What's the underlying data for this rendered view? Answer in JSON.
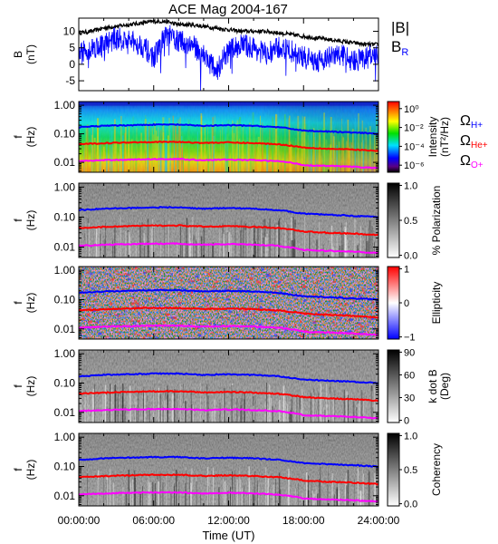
{
  "title": "ACE Mag 2004-167",
  "chart_data": [
    {
      "type": "line",
      "panel": "magnetic-field",
      "ylabel_line1": "B",
      "ylabel_line2": "(nT)",
      "ylim": [
        -8,
        14
      ],
      "yticks": [
        "10",
        "5",
        "0",
        "-5"
      ],
      "ytick_values": [
        10,
        5,
        0,
        -5
      ],
      "legend": [
        {
          "label": "|B|",
          "sub": "",
          "color": "#000000"
        },
        {
          "label": "B",
          "sub": "R",
          "color": "#0000ff"
        }
      ],
      "series": [
        {
          "name": "|B|",
          "color": "#000000",
          "x_hours": [
            0,
            1,
            2,
            3,
            4,
            5,
            6,
            7,
            8,
            9,
            10,
            11,
            12,
            13,
            14,
            15,
            16,
            17,
            18,
            19,
            20,
            21,
            22,
            23,
            24
          ],
          "values": [
            9.5,
            10,
            11,
            11.5,
            12,
            12.5,
            13,
            13,
            12,
            12,
            11.5,
            11,
            10.5,
            10,
            10,
            10,
            9.5,
            9,
            8.5,
            8,
            7.5,
            7,
            6.5,
            6,
            6
          ]
        },
        {
          "name": "B_R",
          "color": "#0000ff",
          "x_hours": [
            0,
            1,
            2,
            3,
            4,
            5,
            6,
            7,
            8,
            9,
            10,
            11,
            12,
            13,
            14,
            15,
            16,
            17,
            18,
            19,
            20,
            21,
            22,
            23,
            24
          ],
          "values": [
            3,
            5,
            6,
            8,
            7,
            6,
            2,
            9,
            7,
            6,
            3,
            -2,
            4,
            6,
            5,
            3,
            5,
            4,
            2,
            1,
            2,
            3,
            1,
            2,
            3
          ]
        }
      ]
    },
    {
      "type": "heatmap",
      "panel": "intensity",
      "ylabel_line1": "f",
      "ylabel_line2": "(Hz)",
      "ylog": true,
      "yticks": [
        "1.00",
        "0.10",
        "0.01"
      ],
      "colorbar_label_line1": "Intensity",
      "colorbar_label_line2": "(nT²/Hz)",
      "colorbar_ticks": [
        "10⁰",
        "10⁻²",
        "10⁻⁴",
        "10⁻⁶"
      ],
      "colorbar_scale": "rainbow",
      "legend": [
        {
          "label": "Ω",
          "sub": "H+",
          "color": "#0000ff"
        },
        {
          "label": "Ω",
          "sub": "He+",
          "color": "#ff0000"
        },
        {
          "label": "Ω",
          "sub": "O+",
          "color": "#ff00ff"
        }
      ]
    },
    {
      "type": "heatmap",
      "panel": "polarization",
      "ylabel_line1": "f",
      "ylabel_line2": "(Hz)",
      "ylog": true,
      "yticks": [
        "1.00",
        "0.10",
        "0.01"
      ],
      "colorbar_label_line1": "% Polarization",
      "colorbar_label_line2": "",
      "colorbar_ticks": [
        "1.0",
        "0.5",
        "0.0"
      ],
      "colorbar_scale": "gray"
    },
    {
      "type": "heatmap",
      "panel": "ellipticity",
      "ylabel_line1": "f",
      "ylabel_line2": "(Hz)",
      "ylog": true,
      "yticks": [
        "1.00",
        "0.10",
        "0.01"
      ],
      "colorbar_label_line1": "Ellipticity",
      "colorbar_label_line2": "",
      "colorbar_ticks": [
        "1",
        "0",
        "−1"
      ],
      "colorbar_scale": "bwr"
    },
    {
      "type": "heatmap",
      "panel": "k-dot-b",
      "ylabel_line1": "f",
      "ylabel_line2": "(Hz)",
      "ylog": true,
      "yticks": [
        "1.00",
        "0.10",
        "0.01"
      ],
      "colorbar_label_line1": "k dot B",
      "colorbar_label_line2": "(Deg)",
      "colorbar_ticks": [
        "90",
        "60",
        "30",
        "0"
      ],
      "colorbar_scale": "gray"
    },
    {
      "type": "heatmap",
      "panel": "coherency",
      "ylabel_line1": "f",
      "ylabel_line2": "(Hz)",
      "ylog": true,
      "yticks": [
        "1.00",
        "0.10",
        "0.01"
      ],
      "colorbar_label_line1": "Coherency",
      "colorbar_label_line2": "",
      "colorbar_ticks": [
        "1.0",
        "0.5",
        "0.0"
      ],
      "colorbar_scale": "gray"
    }
  ],
  "gyrofrequency_lines": {
    "x_hours": [
      0,
      2,
      4,
      6,
      8,
      10,
      12,
      14,
      16,
      17.5,
      18,
      20,
      22,
      24
    ],
    "H+": [
      0.17,
      0.19,
      0.2,
      0.21,
      0.21,
      0.19,
      0.2,
      0.19,
      0.17,
      0.14,
      0.13,
      0.12,
      0.11,
      0.1
    ],
    "He+": [
      0.043,
      0.047,
      0.05,
      0.052,
      0.052,
      0.048,
      0.05,
      0.047,
      0.043,
      0.036,
      0.033,
      0.03,
      0.028,
      0.025
    ],
    "O+": [
      0.011,
      0.012,
      0.0125,
      0.013,
      0.013,
      0.012,
      0.0125,
      0.012,
      0.011,
      0.009,
      0.008,
      0.0075,
      0.007,
      0.0063
    ]
  },
  "xaxis": {
    "label": "Time (UT)",
    "ticks": [
      "00:00:00",
      "06:00:00",
      "12:00:00",
      "18:00:00",
      "24:00:00"
    ],
    "range_hours": [
      0,
      24
    ]
  }
}
